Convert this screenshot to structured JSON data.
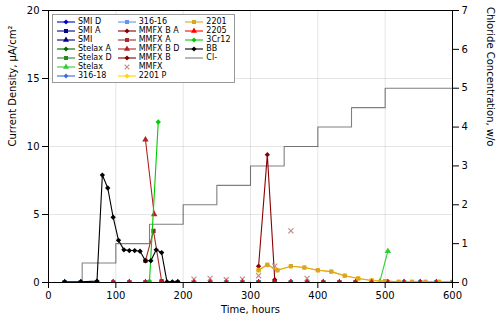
{
  "chart_data": {
    "type": "line",
    "xlabel": "Time, hours",
    "ylabel": "Current Density, μA/cm²",
    "y2label": "Chloride Concentration, w/o",
    "xlim": [
      0,
      600
    ],
    "xticks": [
      0,
      100,
      200,
      300,
      400,
      500,
      600
    ],
    "ylim": [
      0,
      20
    ],
    "yticks": [
      0,
      5,
      10,
      15,
      20
    ],
    "y2lim": [
      0,
      7
    ],
    "y2ticks": [
      0,
      1,
      2,
      3,
      4,
      5,
      6,
      7
    ],
    "grid": true,
    "legend": "upper left",
    "series": [
      {
        "name": "SMI D",
        "color": "#0000CD",
        "marker": "diamond",
        "line_style": "solid",
        "x": [
          24,
          48,
          72,
          96,
          120,
          144,
          168,
          192,
          216,
          240,
          264,
          288,
          312,
          336,
          360,
          384,
          408,
          432,
          456,
          480,
          504,
          528,
          552,
          576,
          600
        ],
        "values": [
          0,
          0,
          0,
          0,
          0,
          0,
          0,
          0,
          0,
          0,
          0,
          0,
          0,
          0,
          0,
          0,
          0,
          0,
          0,
          0,
          0,
          0,
          0,
          0,
          0
        ]
      },
      {
        "name": "SMI A",
        "color": "#00008B",
        "marker": "square",
        "line_style": "solid",
        "x": [
          24,
          48,
          72,
          96,
          120,
          144,
          168,
          192,
          216,
          240,
          264,
          288,
          312,
          336,
          360,
          384,
          408,
          432,
          456,
          480,
          504,
          528,
          552,
          576,
          600
        ],
        "values": [
          0,
          0,
          0,
          0,
          0,
          0,
          0,
          0,
          0,
          0,
          0,
          0,
          0,
          0,
          0,
          0,
          0,
          0,
          0,
          0,
          0,
          0,
          0,
          0,
          0
        ]
      },
      {
        "name": "SMI",
        "color": "#000080",
        "marker": "triangle",
        "line_style": "solid",
        "x": [
          24,
          48,
          72,
          96,
          120,
          144,
          168,
          192,
          216,
          240,
          264,
          288,
          312,
          336,
          360,
          384,
          408,
          432,
          456,
          480,
          504,
          528,
          552,
          576,
          600
        ],
        "values": [
          0,
          0,
          0,
          0,
          0,
          0,
          0,
          0,
          0,
          0,
          0,
          0,
          0,
          0,
          0,
          0,
          0,
          0,
          0,
          0,
          0,
          0,
          0,
          0,
          0
        ]
      },
      {
        "name": "Stelax A",
        "color": "#006400",
        "marker": "diamond",
        "line_style": "solid",
        "x": [
          24,
          48,
          72,
          96,
          120,
          144,
          168,
          192,
          216,
          240,
          264,
          288,
          312,
          336,
          360,
          384,
          408,
          432,
          456,
          480,
          504,
          528,
          552,
          576,
          600
        ],
        "values": [
          0,
          0,
          0,
          0,
          0,
          0,
          0,
          0,
          0,
          0,
          0,
          0,
          0,
          0,
          0,
          0,
          0,
          0,
          0,
          0,
          0,
          0,
          0,
          0,
          0
        ]
      },
      {
        "name": "Stelax D",
        "color": "#228B22",
        "marker": "square",
        "line_style": "solid",
        "x": [
          24,
          48,
          72,
          96,
          120,
          144,
          168,
          192,
          216,
          240,
          264,
          288,
          312,
          336,
          360,
          384,
          408,
          432,
          456,
          480,
          504,
          528,
          552,
          576,
          600
        ],
        "values": [
          0,
          0,
          0,
          0,
          0,
          0,
          0,
          0,
          0,
          0,
          0,
          0,
          0,
          0,
          0,
          0,
          0,
          0,
          0,
          0,
          0,
          0,
          0,
          0,
          0
        ]
      },
      {
        "name": "Stelax",
        "color": "#32CD32",
        "marker": "triangle",
        "line_style": "solid",
        "x": [
          492,
          504
        ],
        "values": [
          0.05,
          2.3
        ]
      },
      {
        "name": "316-18",
        "color": "#4169E1",
        "marker": "diamond",
        "line_style": "solid",
        "x": [
          24,
          48,
          72,
          96,
          120,
          144,
          168,
          192,
          216,
          240,
          264,
          288,
          312,
          336,
          360,
          384,
          408,
          432,
          456,
          480,
          504,
          528,
          552,
          576,
          600
        ],
        "values": [
          0,
          0,
          0,
          0,
          0,
          0,
          0,
          0,
          0,
          0,
          0,
          0,
          0,
          0,
          0,
          0,
          0,
          0,
          0,
          0,
          0,
          0,
          0,
          0,
          0
        ]
      },
      {
        "name": "316-16",
        "color": "#6495ED",
        "marker": "square",
        "line_style": "solid",
        "x": [
          24,
          48,
          72,
          96,
          120,
          144,
          168,
          192,
          216,
          240,
          264,
          288,
          312,
          336,
          360,
          384,
          408,
          432,
          456,
          480,
          504,
          528,
          552,
          576,
          600
        ],
        "values": [
          0,
          0,
          0,
          0,
          0,
          0,
          0,
          0,
          0,
          0,
          0,
          0,
          0,
          0,
          0,
          0,
          0,
          0,
          0,
          0,
          0,
          0,
          0,
          0,
          0
        ]
      },
      {
        "name": "MMFX B A",
        "color": "#8B0000",
        "marker": "diamond",
        "line_style": "solid",
        "x": [
          312,
          325,
          336
        ],
        "values": [
          1.2,
          9.4,
          0.2
        ]
      },
      {
        "name": "MMFX A",
        "color": "#A52A2A",
        "marker": "square",
        "line_style": "solid",
        "x": [
          144,
          156,
          168
        ],
        "values": [
          1.6,
          3.8,
          0.1
        ]
      },
      {
        "name": "MMFX B D",
        "color": "#B22222",
        "marker": "triangle",
        "line_style": "solid",
        "x": [
          144,
          157
        ],
        "values": [
          10.5,
          5.0
        ]
      },
      {
        "name": "MMFX B",
        "color": "#800000",
        "marker": "diamond",
        "line_style": "solid",
        "x": [
          24,
          48,
          72,
          96,
          120,
          144,
          168,
          192,
          216,
          240,
          264,
          288,
          312,
          336,
          360,
          384,
          408,
          432,
          456,
          480,
          504,
          528,
          552,
          576,
          600
        ],
        "values": [
          0,
          0,
          0,
          0,
          0,
          0,
          0,
          0,
          0,
          0,
          0,
          0,
          0,
          0,
          0,
          0,
          0,
          0,
          0,
          0,
          0,
          0,
          0,
          0,
          0
        ]
      },
      {
        "name": "MMFX",
        "color": "#BC8F8F",
        "marker": "x",
        "line_style": "none",
        "x": [
          216,
          240,
          264,
          288,
          312,
          336,
          360,
          384
        ],
        "values": [
          0.25,
          0.3,
          0.2,
          0.25,
          0.5,
          1.2,
          3.8,
          0.3
        ]
      },
      {
        "name": "2201 P",
        "color": "#FFD700",
        "marker": "diamond",
        "line_style": "solid",
        "x": [
          312,
          325,
          340,
          360,
          380,
          400,
          420,
          440,
          460,
          480,
          500,
          520,
          540,
          560,
          580,
          600
        ],
        "values": [
          0.9,
          1.3,
          0.9,
          1.2,
          1.1,
          0.9,
          0.8,
          0.5,
          0.3,
          0.15,
          0.1,
          0.05,
          0.05,
          0.05,
          0.05,
          0.05
        ]
      },
      {
        "name": "2201",
        "color": "#DAA520",
        "marker": "square",
        "line_style": "solid",
        "x": [
          312,
          325,
          340,
          360,
          380,
          400,
          420,
          440,
          460,
          480,
          500,
          520,
          540,
          560,
          580,
          600
        ],
        "values": [
          0.9,
          1.3,
          0.9,
          1.2,
          1.1,
          0.9,
          0.8,
          0.5,
          0.3,
          0.15,
          0.1,
          0.05,
          0.05,
          0.05,
          0.05,
          0.05
        ]
      },
      {
        "name": "2205",
        "color": "#FF0000",
        "marker": "triangle",
        "line_style": "solid",
        "x": [
          24,
          48,
          72,
          96,
          120,
          144,
          168,
          192,
          216,
          240,
          264,
          288,
          312,
          336,
          360,
          384,
          408,
          432,
          456,
          480,
          504,
          528,
          552,
          576,
          600
        ],
        "values": [
          0,
          0,
          0,
          0,
          0,
          0,
          0,
          0,
          0,
          0,
          0,
          0,
          0,
          0,
          0,
          0,
          0,
          0,
          0,
          0,
          0,
          0,
          0,
          0,
          0
        ]
      },
      {
        "name": "3Cr12",
        "color": "#00CC00",
        "marker": "diamond",
        "line_style": "solid",
        "x": [
          150,
          163
        ],
        "values": [
          0.1,
          11.8
        ]
      },
      {
        "name": "BB",
        "color": "#000000",
        "marker": "diamond",
        "line_style": "solid",
        "x": [
          24,
          48,
          72,
          80,
          88,
          96,
          104,
          112,
          120,
          128,
          136,
          144,
          152,
          160,
          168,
          176,
          184,
          192
        ],
        "values": [
          0.05,
          0.05,
          0.1,
          7.9,
          6.95,
          4.8,
          3.1,
          2.4,
          2.35,
          2.35,
          2.3,
          1.6,
          1.6,
          2.4,
          2.2,
          0.05,
          0.05,
          0.05
        ]
      },
      {
        "name": "Cl-",
        "color": "#808080",
        "axis": "y2",
        "line_style": "solid",
        "x": [
          0,
          50,
          50,
          100,
          100,
          150,
          150,
          200,
          200,
          250,
          250,
          300,
          300,
          350,
          350,
          400,
          400,
          450,
          450,
          500,
          500,
          600
        ],
        "values": [
          0.0,
          0.0,
          0.5,
          0.5,
          1.0,
          1.0,
          1.5,
          1.5,
          2.0,
          2.0,
          2.5,
          2.5,
          3.0,
          3.0,
          3.5,
          3.5,
          4.0,
          4.0,
          4.5,
          4.5,
          5.0,
          5.0
        ]
      }
    ]
  }
}
